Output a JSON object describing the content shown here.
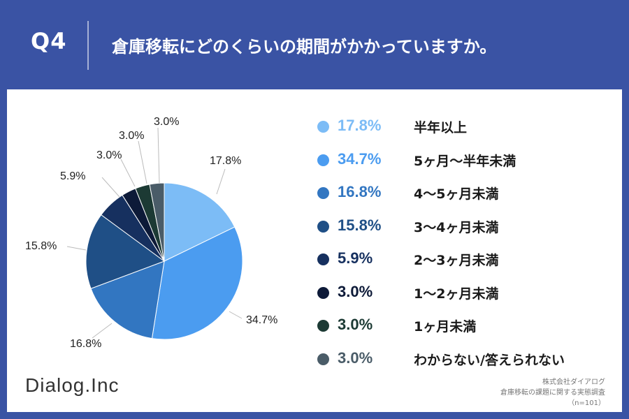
{
  "header": {
    "q_label": "Q4",
    "question": "倉庫移転にどのくらいの期間がかかっていますか。"
  },
  "colors": {
    "header_bg": "#3a53a4",
    "panel_bg": "#ffffff"
  },
  "chart_data": {
    "type": "pie",
    "categories": [
      "半年以上",
      "5ヶ月〜半年未満",
      "4〜5ヶ月未満",
      "3〜4ヶ月未満",
      "2〜3ヶ月未満",
      "1〜2ヶ月未満",
      "1ヶ月未満",
      "わからない/答えられない"
    ],
    "values": [
      17.8,
      34.7,
      16.8,
      15.8,
      5.9,
      3.0,
      3.0,
      3.0
    ],
    "labels": [
      "17.8%",
      "34.7%",
      "16.8%",
      "15.8%",
      "5.9%",
      "3.0%",
      "3.0%",
      "3.0%"
    ],
    "colors": [
      "#7cbcf6",
      "#4b9cf0",
      "#3276c1",
      "#1f4f86",
      "#16305f",
      "#0d1a38",
      "#1c3a34",
      "#4a5c68"
    ],
    "legend_placement": "right",
    "start_angle": "12 o'clock",
    "direction": "clockwise"
  },
  "footer": {
    "logo": "Dialog.Inc",
    "source_lines": [
      "株式会社ダイアログ",
      "倉庫移転の課題に関する実態調査",
      "（n=101）"
    ]
  }
}
